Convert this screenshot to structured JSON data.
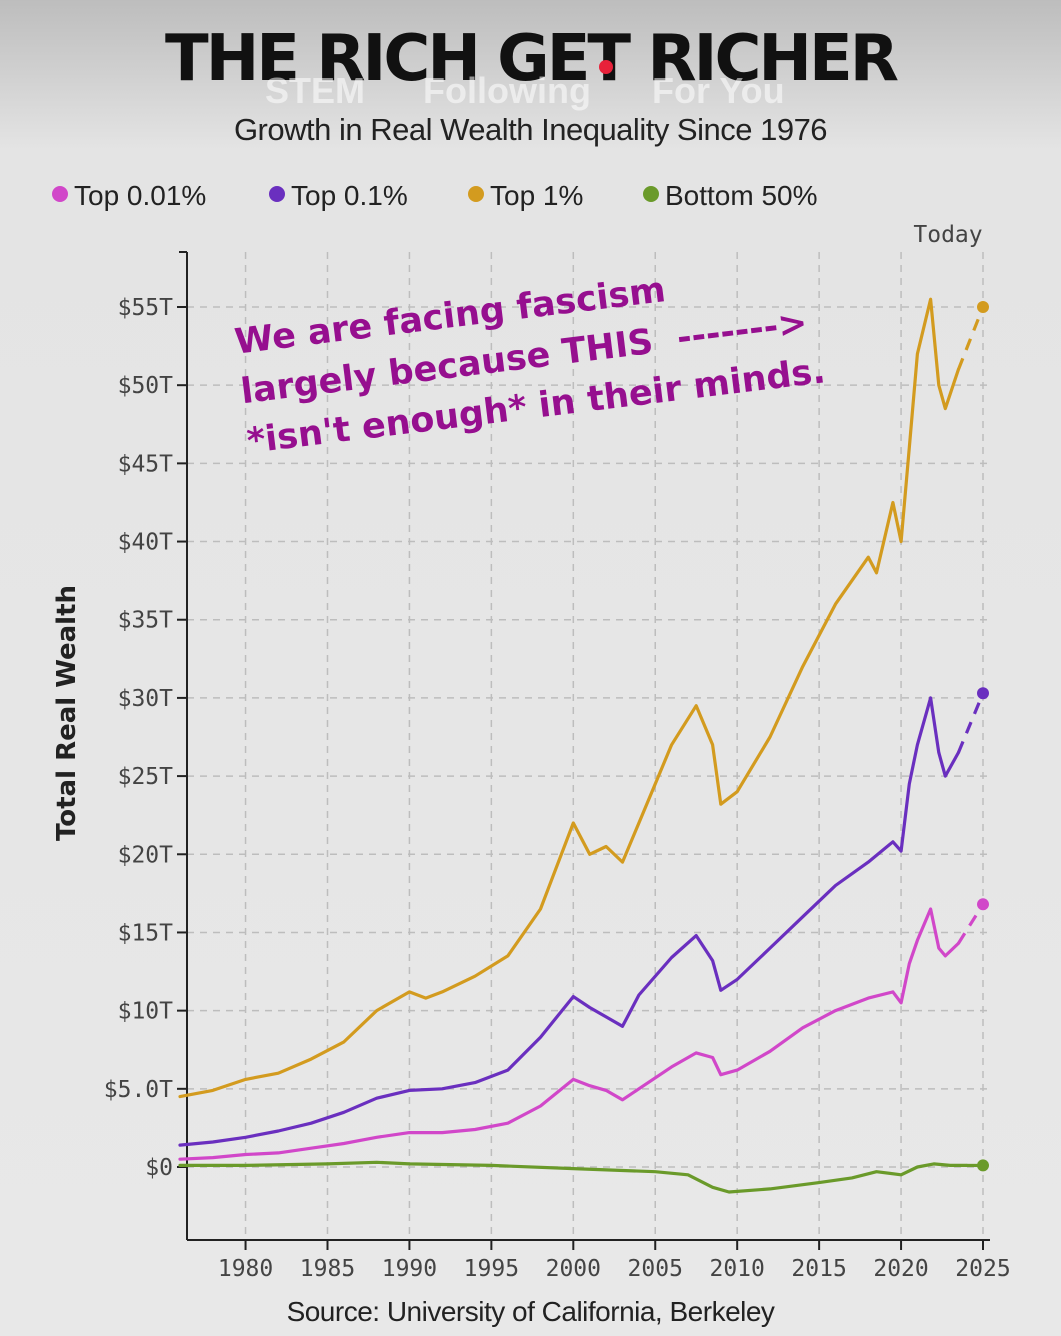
{
  "title": "THE RICH GET RICHER",
  "subtitle": "Growth in Real Wealth Inequality Since 1976",
  "tabs": [
    "STEM",
    "Following",
    "For You"
  ],
  "source": "Source: University of California, Berkeley",
  "annotation": {
    "lines": [
      "We are facing fascism",
      "largely because THIS  ------->",
      "*isn't enough* in their minds."
    ],
    "color": "#960f8f"
  },
  "today_label": "Today",
  "colors": {
    "top001": "#d147c9",
    "top01": "#6a2fbf",
    "top1": "#d39b1f",
    "bottom50": "#6a9a2a",
    "axis": "#222222",
    "grid": "#bdbdbd"
  },
  "chart_data": {
    "type": "line",
    "ylabel": "Total Real Wealth",
    "xlabel": "",
    "xlim": [
      1976,
      2025.5
    ],
    "ylim": [
      -4.5,
      59
    ],
    "x_ticks": [
      1980,
      1985,
      1990,
      1995,
      2000,
      2005,
      2010,
      2015,
      2020,
      2025
    ],
    "y_ticks": [
      {
        "value": 0,
        "label": "$0"
      },
      {
        "value": 5,
        "label": "$5.0T"
      },
      {
        "value": 10,
        "label": "$10T"
      },
      {
        "value": 15,
        "label": "$15T"
      },
      {
        "value": 20,
        "label": "$20T"
      },
      {
        "value": 25,
        "label": "$25T"
      },
      {
        "value": 30,
        "label": "$30T"
      },
      {
        "value": 35,
        "label": "$35T"
      },
      {
        "value": 40,
        "label": "$40T"
      },
      {
        "value": 45,
        "label": "$45T"
      },
      {
        "value": 50,
        "label": "$50T"
      },
      {
        "value": 55,
        "label": "$55T"
      }
    ],
    "grid": true,
    "legend_position": "top",
    "series": [
      {
        "name": "Top 0.01%",
        "color_key": "top001",
        "x": [
          1976,
          1978,
          1980,
          1982,
          1984,
          1986,
          1988,
          1990,
          1992,
          1994,
          1996,
          1998,
          2000,
          2001,
          2002,
          2003,
          2004,
          2006,
          2007.5,
          2008.5,
          2009,
          2010,
          2012,
          2014,
          2016,
          2018,
          2019.5,
          2020,
          2020.5,
          2021,
          2021.8,
          2022.3,
          2022.7,
          2023.5
        ],
        "y": [
          0.5,
          0.6,
          0.8,
          0.9,
          1.2,
          1.5,
          1.9,
          2.2,
          2.2,
          2.4,
          2.8,
          3.9,
          5.6,
          5.2,
          4.9,
          4.3,
          5.0,
          6.4,
          7.3,
          7.0,
          5.9,
          6.2,
          7.4,
          8.9,
          10.0,
          10.8,
          11.2,
          10.5,
          13.0,
          14.5,
          16.5,
          14.0,
          13.5,
          14.3
        ],
        "projection": {
          "x": [
            2023.5,
            2025
          ],
          "y": [
            14.3,
            16.8
          ]
        }
      },
      {
        "name": "Top 0.1%",
        "color_key": "top01",
        "x": [
          1976,
          1978,
          1980,
          1982,
          1984,
          1986,
          1988,
          1990,
          1992,
          1994,
          1996,
          1998,
          2000,
          2001,
          2002,
          2003,
          2004,
          2006,
          2007.5,
          2008.5,
          2009,
          2010,
          2012,
          2014,
          2016,
          2018,
          2019.5,
          2020,
          2020.5,
          2021,
          2021.8,
          2022.3,
          2022.7,
          2023.5
        ],
        "y": [
          1.4,
          1.6,
          1.9,
          2.3,
          2.8,
          3.5,
          4.4,
          4.9,
          5.0,
          5.4,
          6.2,
          8.3,
          10.9,
          10.2,
          9.6,
          9.0,
          11.0,
          13.4,
          14.8,
          13.2,
          11.3,
          12.0,
          14.0,
          16.0,
          18.0,
          19.5,
          20.8,
          20.2,
          24.5,
          27.0,
          30.0,
          26.5,
          25.0,
          26.5
        ],
        "projection": {
          "x": [
            2023.5,
            2025
          ],
          "y": [
            26.5,
            30.3
          ]
        }
      },
      {
        "name": "Top 1%",
        "color_key": "top1",
        "x": [
          1976,
          1978,
          1980,
          1982,
          1984,
          1986,
          1988,
          1990,
          1991,
          1992,
          1994,
          1996,
          1998,
          2000,
          2001,
          2002,
          2003,
          2004,
          2006,
          2007.5,
          2008.5,
          2009,
          2010,
          2012,
          2014,
          2016,
          2018,
          2018.5,
          2019.5,
          2020,
          2020.5,
          2021,
          2021.8,
          2022.3,
          2022.7,
          2023.5
        ],
        "y": [
          4.5,
          4.9,
          5.6,
          6.0,
          6.9,
          8.0,
          10.0,
          11.2,
          10.8,
          11.2,
          12.2,
          13.5,
          16.5,
          22.0,
          20.0,
          20.5,
          19.5,
          22.0,
          27.0,
          29.5,
          27.0,
          23.2,
          24.0,
          27.5,
          32.0,
          36.0,
          39.0,
          38.0,
          42.5,
          40.0,
          46.0,
          52.0,
          55.5,
          50.0,
          48.5,
          51.0
        ],
        "projection": {
          "x": [
            2023.5,
            2025
          ],
          "y": [
            51.0,
            55.0
          ]
        }
      },
      {
        "name": "Bottom 50%",
        "color_key": "bottom50",
        "x": [
          1976,
          1980,
          1985,
          1988,
          1990,
          1995,
          2000,
          2005,
          2007,
          2008.5,
          2009.5,
          2012,
          2015,
          2017,
          2018.5,
          2020,
          2021,
          2022,
          2023,
          2024
        ],
        "y": [
          0.1,
          0.1,
          0.2,
          0.3,
          0.2,
          0.1,
          -0.1,
          -0.3,
          -0.5,
          -1.3,
          -1.6,
          -1.4,
          -1.0,
          -0.7,
          -0.3,
          -0.5,
          0.0,
          0.2,
          0.1,
          0.1
        ],
        "projection": {
          "x": [
            2024,
            2025
          ],
          "y": [
            0.1,
            0.1
          ]
        }
      }
    ]
  }
}
